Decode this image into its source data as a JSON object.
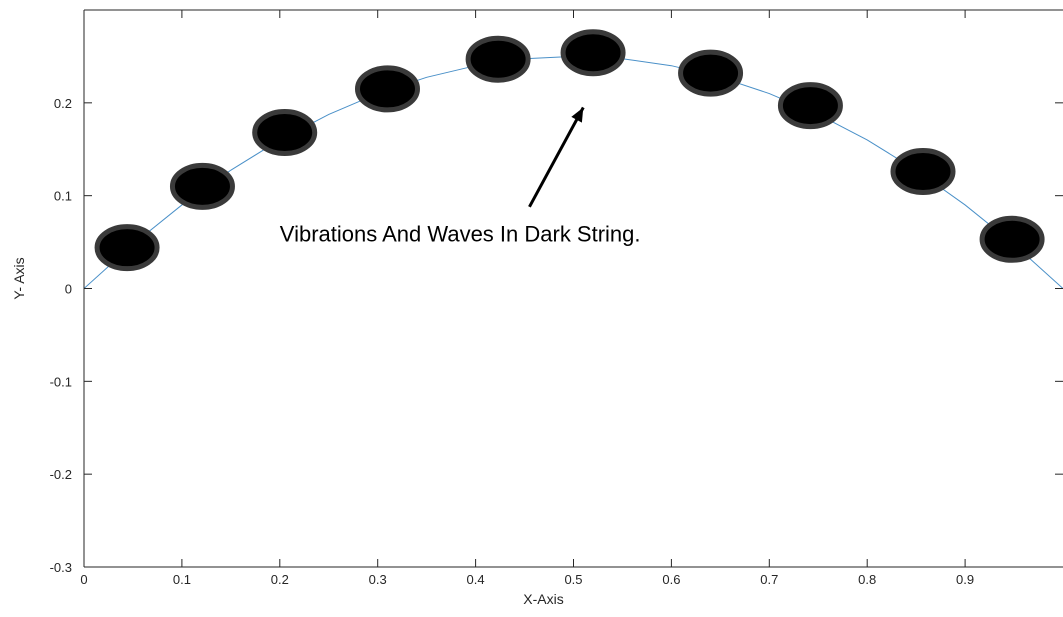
{
  "chart_data": {
    "type": "scatter",
    "title": "",
    "xlabel": "X-Axis",
    "ylabel": "Y- Axis",
    "xlim": [
      0,
      1
    ],
    "ylim": [
      -0.3,
      0.3
    ],
    "x_ticks": [
      "0",
      "0.1",
      "0.2",
      "0.3",
      "0.4",
      "0.5",
      "0.6",
      "0.7",
      "0.8",
      "0.9"
    ],
    "y_ticks": [
      "-0.3",
      "-0.2",
      "-0.1",
      "0",
      "0.1",
      "0.2"
    ],
    "grid": false,
    "legend": "none",
    "series": [
      {
        "type": "line",
        "color": "#4a90c8",
        "x": [
          0,
          0.05,
          0.1,
          0.15,
          0.2,
          0.25,
          0.3,
          0.35,
          0.4,
          0.45,
          0.5,
          0.55,
          0.6,
          0.65,
          0.7,
          0.75,
          0.8,
          0.85,
          0.9,
          0.95,
          1.0
        ],
        "y": [
          0,
          0.0475,
          0.09,
          0.1275,
          0.16,
          0.1875,
          0.21,
          0.2275,
          0.24,
          0.2475,
          0.25,
          0.2475,
          0.24,
          0.2275,
          0.21,
          0.1875,
          0.16,
          0.1275,
          0.09,
          0.0475,
          0
        ]
      },
      {
        "type": "scatter",
        "marker_fill": "#000000",
        "marker_edge": "#3a3a3a",
        "x": [
          0.044,
          0.121,
          0.205,
          0.31,
          0.423,
          0.52,
          0.64,
          0.742,
          0.857,
          0.948
        ],
        "y": [
          0.044,
          0.11,
          0.168,
          0.215,
          0.247,
          0.254,
          0.232,
          0.197,
          0.126,
          0.053
        ]
      }
    ],
    "annotation": {
      "text": "Vibrations And Waves In Dark String.",
      "arrow_tip": [
        0.51,
        0.195
      ],
      "arrow_tail": [
        0.455,
        0.088
      ],
      "text_anchor": [
        0.2,
        0.059
      ]
    }
  }
}
